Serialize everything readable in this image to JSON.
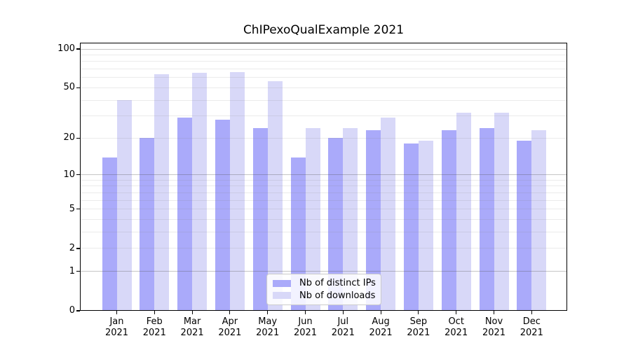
{
  "title": "ChIPexoQualExample 2021",
  "colors": {
    "bar_distinct_ips": "#aaaafa",
    "bar_downloads": "#d8d8f8",
    "grid_minor": "#ebebeb",
    "grid_major": "#c5c5c5",
    "axis": "#000000",
    "legend_border": "#cccccc",
    "background": "#ffffff"
  },
  "legend": {
    "items": [
      {
        "label": "Nb of distinct IPs",
        "color_key": "bar_distinct_ips"
      },
      {
        "label": "Nb of downloads",
        "color_key": "bar_downloads"
      }
    ]
  },
  "chart_data": {
    "type": "bar",
    "title": "ChIPexoQualExample 2021",
    "categories": [
      "Jan 2021",
      "Feb 2021",
      "Mar 2021",
      "Apr 2021",
      "May 2021",
      "Jun 2021",
      "Jul 2021",
      "Aug 2021",
      "Sep 2021",
      "Oct 2021",
      "Nov 2021",
      "Dec 2021"
    ],
    "x_tick_labels": [
      {
        "line1": "Jan",
        "line2": "2021"
      },
      {
        "line1": "Feb",
        "line2": "2021"
      },
      {
        "line1": "Mar",
        "line2": "2021"
      },
      {
        "line1": "Apr",
        "line2": "2021"
      },
      {
        "line1": "May",
        "line2": "2021"
      },
      {
        "line1": "Jun",
        "line2": "2021"
      },
      {
        "line1": "Jul",
        "line2": "2021"
      },
      {
        "line1": "Aug",
        "line2": "2021"
      },
      {
        "line1": "Sep",
        "line2": "2021"
      },
      {
        "line1": "Oct",
        "line2": "2021"
      },
      {
        "line1": "Nov",
        "line2": "2021"
      },
      {
        "line1": "Dec",
        "line2": "2021"
      }
    ],
    "series": [
      {
        "name": "Nb of distinct IPs",
        "color": "#aaaafa",
        "values": [
          14,
          20,
          29,
          28,
          24,
          14,
          20,
          23,
          18,
          23,
          24,
          19
        ]
      },
      {
        "name": "Nb of downloads",
        "color": "#d8d8f8",
        "values": [
          40,
          64,
          65,
          66,
          56,
          24,
          24,
          29,
          19,
          32,
          32,
          23
        ]
      }
    ],
    "y_axis": {
      "scale": "log10(value+1)",
      "min": 0,
      "max": 100,
      "ticks": [
        0,
        1,
        2,
        5,
        10,
        20,
        50,
        100
      ],
      "grid_minor": [
        2,
        3,
        4,
        5,
        6,
        7,
        8,
        9,
        20,
        30,
        40,
        50,
        60,
        70,
        80,
        90
      ],
      "grid_major": [
        1,
        10,
        100
      ]
    },
    "legend_position": "bottom-center",
    "grid": true
  }
}
